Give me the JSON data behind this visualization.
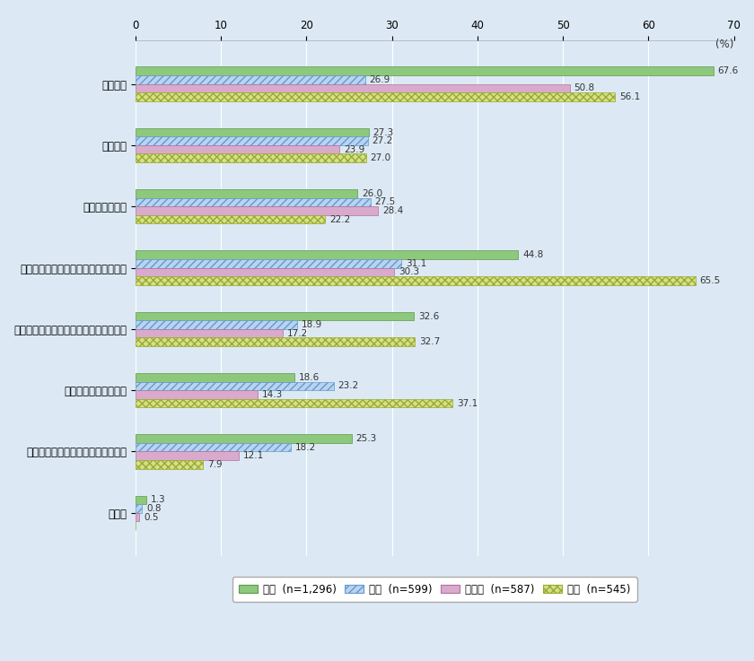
{
  "categories": [
    "人材不足",
    "資金不足",
    "検討時間の不足",
    "デジタル技術の知識・リテラシー不足",
    "アナログな文化・価値観が定着している",
    "規制・制度による障壁",
    "明確な目的・目標が定まっていない",
    "その他"
  ],
  "series": [
    {
      "name": "日本  (n=1,296)",
      "values": [
        67.6,
        27.3,
        26.0,
        44.8,
        32.6,
        18.6,
        25.3,
        1.3
      ],
      "color": "#8dc87c",
      "hatch": "",
      "edgecolor": "#5a9a4a"
    },
    {
      "name": "米国  (n=599)",
      "values": [
        26.9,
        27.2,
        27.5,
        31.1,
        18.9,
        23.2,
        18.2,
        0.8
      ],
      "color": "#b8d4f0",
      "hatch": "////",
      "edgecolor": "#6699cc"
    },
    {
      "name": "ドイツ  (n=587)",
      "values": [
        50.8,
        23.9,
        28.4,
        30.3,
        17.2,
        14.3,
        12.1,
        0.5
      ],
      "color": "#d9aacc",
      "hatch": "",
      "edgecolor": "#b070a0"
    },
    {
      "name": "中国  (n=545)",
      "values": [
        56.1,
        27.0,
        22.2,
        65.5,
        32.7,
        37.1,
        7.9,
        0.0
      ],
      "color": "#d4e08a",
      "hatch": "xxxx",
      "edgecolor": "#9aaa30"
    }
  ],
  "xlim": [
    0,
    70
  ],
  "xticks": [
    0,
    10,
    20,
    30,
    40,
    50,
    60,
    70
  ],
  "background_color": "#dce9f5",
  "bar_height": 0.14,
  "value_fontsize": 7.5,
  "label_fontsize": 8.5,
  "tick_fontsize": 8.5,
  "legend_fontsize": 8.5
}
